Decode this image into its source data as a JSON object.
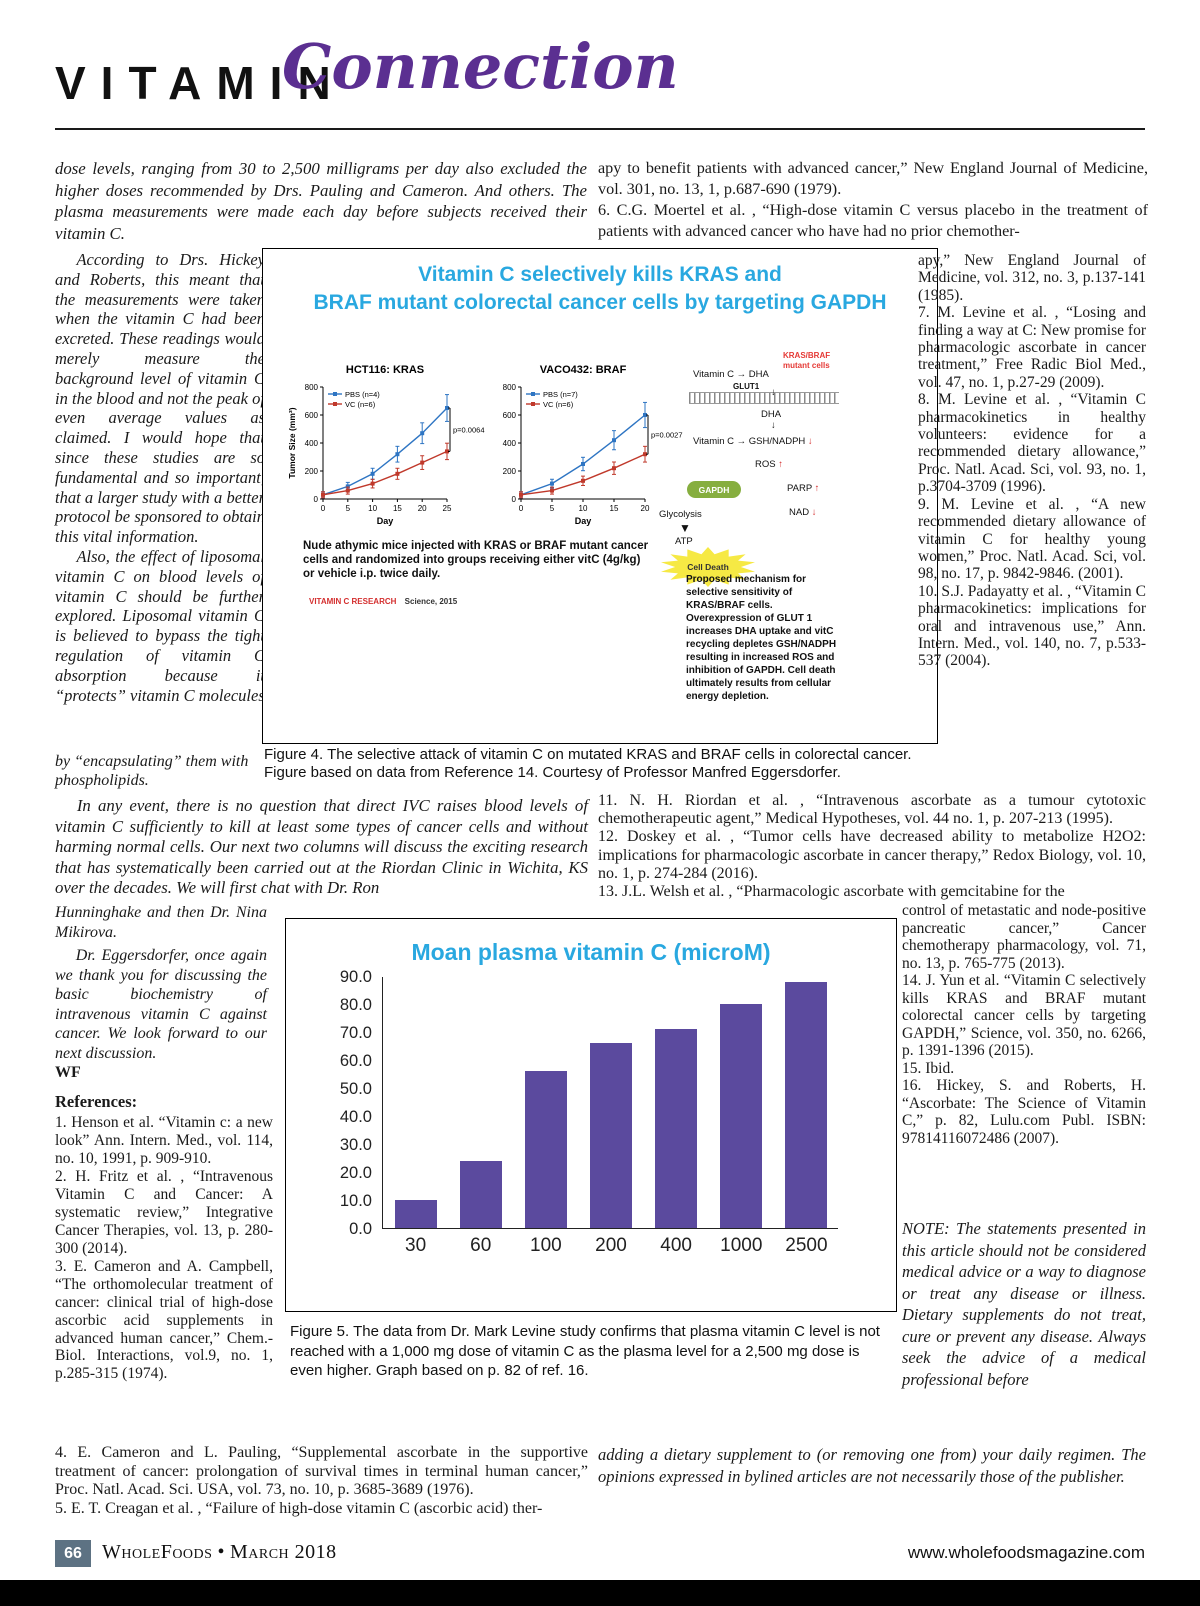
{
  "header": {
    "brand": "VITAMIN",
    "script": "Connection"
  },
  "icons": {
    "right_arrow": "→",
    "up_arrow": "↑",
    "down_arrow": "↓",
    "thick_down_arrow": "▼"
  },
  "intro": {
    "left": "dose levels, ranging from 30 to 2,500 milligrams per day also excluded the higher doses recommended by Drs. Pauling and Cameron. And others. The plasma measurements were made each day before subjects received their vitamin C.",
    "right_ref5_cont": "apy to benefit patients with advanced cancer,” New England Journal of Medicine, vol. 301, no. 13, 1, p.687-690 (1979).",
    "right_ref6": "6. C.G. Moertel et al. , “High-dose vitamin C versus placebo in the treatment of patients with advanced cancer who have had no prior chemother-"
  },
  "left_column": {
    "para_according": "According to Drs. Hickey and Roberts, this meant that the measurements were taken when the vitamin C had been excreted. These readings would merely measure the background level of vitamin C in the blood and not the peak of even average values as claimed. I would hope that since these studies are so fundamental and so important, that a larger study with a better protocol be sponsored to obtain this vital information.",
    "para_also": "Also, the effect of liposomal vitamin C on blood levels of vitamin C should be further explored. Liposomal vitamin C is believed to bypass the tight regulation of vitamin C absorption because it “protects” vitamin C molecules",
    "line_encapsulating": "by “encapsulating” them with phospholipids.",
    "para_in_any_event": "In any event, there is no question that direct IVC raises blood levels of vitamin C sufficiently to kill at least some types of cancer cells and without harming normal cells. Our next two columns will discuss the exciting research that has systematically been carried out at the Riordan Clinic in Wichita, KS over the decades. We will first chat with Dr. Ron",
    "para_hunninghake": "Hunninghake and then Dr. Nina Mikirova.",
    "para_eggersdorfer": "Dr. Eggersdorfer, once again we thank you for discussing the basic biochemistry of intravenous vitamin C against cancer. We look forward to our next discussion.",
    "signoff": "WF"
  },
  "figure4": {
    "title_line1": "Vitamin C selectively kills KRAS and",
    "title_line2": "BRAF mutant colorectal cancer cells by targeting GAPDH",
    "mice_caption": "Nude athymic mice injected with KRAS or BRAF mutant cancer cells and randomized into groups receiving either vitC (4g/kg) or vehicle i.p. twice daily.",
    "credit_red": "VITAMIN C RESEARCH",
    "credit_black": "Science, 2015",
    "mechanism": "Proposed mechanism for selective sensitivity of KRAS/BRAF cells. Overexpression of GLUT 1 increases DHA uptake and vitC recycling depletes GSH/NADPH resulting in increased ROS and inhibition of GAPDH. Cell death ultimately results from cellular energy depletion.",
    "diagram": {
      "vitc_out": "Vitamin C",
      "dha_out": "DHA",
      "mutant_label": "KRAS/BRAF mutant cells",
      "glut1": "GLUT1",
      "dha_in": "DHA",
      "vitc_in": "Vitamin C",
      "gsh": "GSH/NADPH",
      "ros": "ROS",
      "gapdh": "GAPDH",
      "parp": "PARP",
      "nad": "NAD",
      "glycolysis": "Glycolysis",
      "atp": "ATP",
      "cell_death": "Cell Death"
    },
    "caption": "Figure 4. The selective attack of vitamin C on mutated KRAS and BRAF cells in colorectal cancer. Figure based on data from Reference 14. Courtesy of Professor Manfred Eggersdorfer."
  },
  "figure5": {
    "caption": "Figure 5.   The data from Dr. Mark Levine study confirms that plasma vitamin C level is not reached with a 1,000 mg dose of vitamin C as the plasma level for a 2,500 mg dose is even higher. Graph based on p. 82 of ref. 16."
  },
  "references": {
    "heading": "References:",
    "left": [
      "1. Henson et al.  “Vitamin c: a new look” Ann. Intern. Med., vol. 114, no. 10, 1991, p. 909-910.",
      "2. H. Fritz et al. , “Intravenous Vitamin C and Cancer: A systematic review,” Integrative Cancer Therapies, vol. 13, p. 280-300 (2014).",
      "3. E. Cameron and A. Campbell, “The orthomolecular treatment of cancer: clinical trial of high-dose ascorbic acid supplements in advanced human cancer,” Chem.-Biol. Interactions, vol.9, no. 1, p.285-315 (1974)."
    ],
    "bottom_left": [
      "4. E. Cameron and L. Pauling, “Supplemental ascorbate in the supportive treatment of cancer: prolongation of survival times in terminal human cancer,” Proc. Natl. Acad. Sci. USA, vol. 73, no. 10, p. 3685-3689 (1976).",
      "5. E. T. Creagan et al. , “Failure of high-dose vitamin C (ascorbic acid) ther-"
    ],
    "mid": [
      "11. N. H. Riordan et al. , “Intravenous ascorbate as a tumour cytotoxic chemotherapeutic agent,” Medical Hypotheses, vol. 44 no. 1, p. 207-213 (1995).",
      "12. Doskey et al. , “Tumor cells have decreased ability to metabolize H2O2: implications for pharmacologic ascorbate in cancer therapy,” Redox Biology, vol. 10, no. 1, p. 274-284 (2016).",
      "13. J.L. Welsh et al. , “Pharmacologic ascorbate with gemcitabine for the"
    ],
    "right_top": [
      "apy,” New England Journal of Medicine, vol. 312, no. 3, p.137-141 (1985).",
      "7. M. Levine et al. , “Losing and finding a way at C: New promise for pharmacologic ascorbate in cancer treatment,” Free Radic Biol Med., vol. 47, no. 1, p.27-29 (2009).",
      "8. M. Levine et al. , “Vitamin C pharmacokinetics in healthy volunteers: evidence for a recommended dietary allowance,” Proc. Natl. Acad. Sci, vol. 93, no. 1, p.3704-3709 (1996).",
      "9. M. Levine et al. , “A new recommended dietary allowance of vitamin C for healthy young women,” Proc. Natl. Acad. Sci, vol. 98, no. 17, p. 9842-9846. (2001).",
      "10. S.J. Padayatty et al. , “Vitamin C pharmacokinetics: implications for oral and intravenous use,” Ann. Intern. Med., vol. 140, no. 7, p.533-537 (2004)."
    ],
    "right_bottom": [
      "control of metastatic and node-positive pancreatic cancer,” Cancer chemotherapy pharmacology, vol. 71, no. 13, p. 765-775 (2013).",
      "14. J. Yun et al.  “Vitamin C selectively kills KRAS and BRAF mutant colorectal cancer cells by targeting GAPDH,” Science, vol. 350, no. 6266, p. 1391-1396 (2015).",
      "15.  Ibid.",
      "16. Hickey, S. and Roberts, H. “Ascorbate: The Science of Vitamin C,” p. 82, Lulu.com Publ. ISBN: 97814116072486 (2007)."
    ]
  },
  "note": "NOTE: The statements presented in this article should not be considered medical advice or a way to diagnose or treat any disease or illness. Dietary supplements do not treat, cure or prevent any disease. Always seek the advice of a medical professional before",
  "note_cont": "adding a dietary supplement to (or removing one from) your daily regimen. The opinions expressed in bylined articles are not necessarily those of the publisher.",
  "footer": {
    "page": "66",
    "magazine": "WholeFoods",
    "separator": "•",
    "date": "March 2018",
    "url": "www.wholefoodsmagazine.com"
  },
  "chart_data": [
    {
      "id": "hct116",
      "type": "line",
      "title": "HCT116: KRAS",
      "x": [
        0,
        5,
        10,
        15,
        20,
        25
      ],
      "series": [
        {
          "name": "PBS (n=4)",
          "color": "#2e75c3",
          "values": [
            30,
            90,
            180,
            320,
            470,
            650
          ]
        },
        {
          "name": "VC (n=6)",
          "color": "#c0392b",
          "values": [
            30,
            60,
            110,
            180,
            260,
            340
          ]
        }
      ],
      "ylabel": "Tumor Size (mm³)",
      "xlabel": "Day",
      "ylim": [
        0,
        800
      ],
      "yticks": [
        0,
        200,
        400,
        600,
        800
      ],
      "p_label": "p=0.0064"
    },
    {
      "id": "vaco432",
      "type": "line",
      "title": "VACO432: BRAF",
      "x": [
        0,
        5,
        10,
        15,
        20
      ],
      "series": [
        {
          "name": "PBS (n=7)",
          "color": "#2e75c3",
          "values": [
            30,
            110,
            250,
            420,
            600
          ]
        },
        {
          "name": "VC (n=6)",
          "color": "#c0392b",
          "values": [
            30,
            60,
            130,
            220,
            320
          ]
        }
      ],
      "ylabel": "Tumor Size (mm³)",
      "xlabel": "Day",
      "ylim": [
        0,
        800
      ],
      "yticks": [
        0,
        200,
        400,
        600,
        800
      ],
      "p_label": "p=0.0027"
    },
    {
      "id": "fig5",
      "type": "bar",
      "title": "Moan plasma vitamin C (microM)",
      "categories": [
        "30",
        "60",
        "100",
        "200",
        "400",
        "1000",
        "2500"
      ],
      "values": [
        10,
        24,
        56,
        66,
        71,
        80,
        88
      ],
      "ylim": [
        0,
        90
      ],
      "yticks": [
        "90.0",
        "80.0",
        "70.0",
        "60.0",
        "50.0",
        "40.0",
        "30.0",
        "20.0",
        "10.0",
        "0.0"
      ],
      "bar_color": "#5b4a9e",
      "xlabel": "",
      "ylabel": "",
      "legend": "none",
      "grid": false
    }
  ]
}
